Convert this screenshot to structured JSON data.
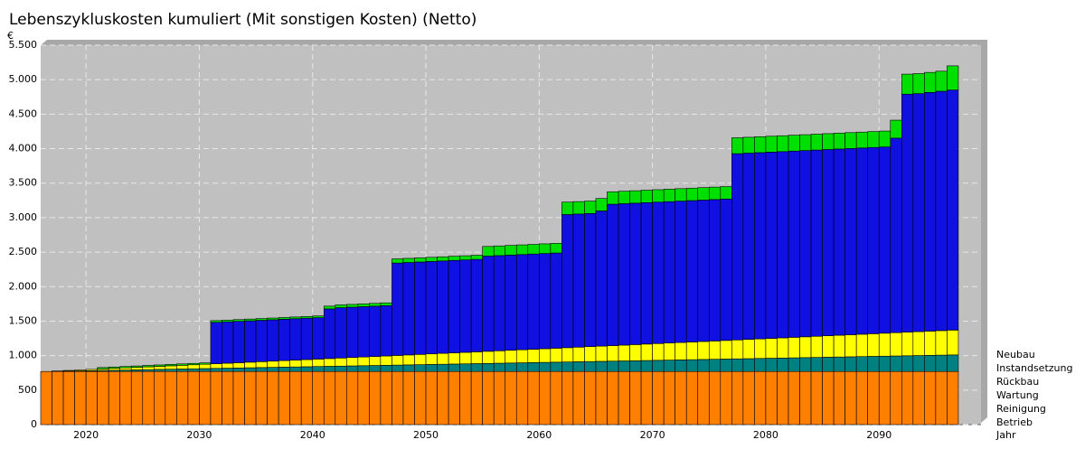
{
  "chart_data": {
    "type": "stacked_bar",
    "title": "Lebenszykluskosten kumuliert (Mit sonstigen Kosten) (Netto)",
    "y_label": "€",
    "x_label": "Jahr",
    "x": [
      2016,
      2017,
      2018,
      2019,
      2020,
      2021,
      2022,
      2023,
      2024,
      2025,
      2026,
      2027,
      2028,
      2029,
      2030,
      2031,
      2032,
      2033,
      2034,
      2035,
      2036,
      2037,
      2038,
      2039,
      2040,
      2041,
      2042,
      2043,
      2044,
      2045,
      2046,
      2047,
      2048,
      2049,
      2050,
      2051,
      2052,
      2053,
      2054,
      2055,
      2056,
      2057,
      2058,
      2059,
      2060,
      2061,
      2062,
      2063,
      2064,
      2065,
      2066,
      2067,
      2068,
      2069,
      2070,
      2071,
      2072,
      2073,
      2074,
      2075,
      2076,
      2077,
      2078,
      2079,
      2080,
      2081,
      2082,
      2083,
      2084,
      2085,
      2086,
      2087,
      2088,
      2089,
      2090,
      2091,
      2092,
      2093,
      2094,
      2095,
      2096
    ],
    "xlim": [
      2016,
      2099
    ],
    "xticks": [
      2020,
      2030,
      2040,
      2050,
      2060,
      2070,
      2080,
      2090
    ],
    "ylim": [
      0,
      5500
    ],
    "yticks": [
      0,
      500,
      {
        "value": 1000,
        "label": "1.000"
      },
      {
        "value": 1500,
        "label": "1.500"
      },
      {
        "value": 2000,
        "label": "2.000"
      },
      {
        "value": 2500,
        "label": "2.500"
      },
      {
        "value": 3000,
        "label": "3.000"
      },
      {
        "value": 3500,
        "label": "3.500"
      },
      {
        "value": 4000,
        "label": "4.000"
      },
      {
        "value": 4500,
        "label": "4.500"
      },
      {
        "value": 5000,
        "label": "5.000"
      },
      {
        "value": 5500,
        "label": "5.500"
      }
    ],
    "grid": true,
    "series": [
      {
        "name": "Neubau",
        "color": "#ff8000",
        "values": [
          770,
          770,
          770,
          770,
          770,
          770,
          770,
          770,
          770,
          770,
          770,
          770,
          770,
          770,
          770,
          770,
          770,
          770,
          770,
          770,
          770,
          770,
          770,
          770,
          770,
          770,
          770,
          770,
          770,
          770,
          770,
          770,
          770,
          770,
          770,
          770,
          770,
          770,
          770,
          770,
          770,
          770,
          770,
          770,
          770,
          770,
          770,
          770,
          770,
          770,
          770,
          770,
          770,
          770,
          770,
          770,
          770,
          770,
          770,
          770,
          770,
          770,
          770,
          770,
          770,
          770,
          770,
          770,
          770,
          770,
          770,
          770,
          770,
          770,
          770,
          770,
          770,
          770,
          770,
          770,
          770
        ]
      },
      {
        "name": "Instandsetzung",
        "color": "#1010e0",
        "values": [
          0,
          0,
          0,
          0,
          0,
          0,
          0,
          0,
          0,
          0,
          0,
          0,
          0,
          0,
          0,
          600,
          600,
          600,
          600,
          600,
          600,
          600,
          600,
          600,
          600,
          720,
          730,
          730,
          730,
          730,
          730,
          1340,
          1340,
          1340,
          1340,
          1340,
          1340,
          1340,
          1340,
          1380,
          1380,
          1380,
          1380,
          1380,
          1380,
          1380,
          1930,
          1930,
          1930,
          1960,
          2050,
          2050,
          2050,
          2050,
          2050,
          2050,
          2050,
          2050,
          2050,
          2050,
          2050,
          2700,
          2700,
          2700,
          2700,
          2700,
          2700,
          2700,
          2700,
          2700,
          2700,
          2700,
          2700,
          2700,
          2700,
          2820,
          3450,
          3450,
          3460,
          3470,
          3480
        ]
      },
      {
        "name": "Rückbau",
        "color": "#00e000",
        "values": [
          0,
          0,
          0,
          0,
          0,
          20,
          20,
          20,
          20,
          20,
          20,
          20,
          20,
          20,
          20,
          25,
          25,
          25,
          25,
          25,
          25,
          25,
          25,
          25,
          25,
          40,
          40,
          40,
          40,
          40,
          40,
          60,
          60,
          60,
          60,
          60,
          60,
          60,
          60,
          140,
          140,
          140,
          140,
          140,
          140,
          140,
          180,
          180,
          180,
          180,
          180,
          180,
          180,
          180,
          180,
          180,
          180,
          180,
          180,
          180,
          180,
          230,
          230,
          230,
          230,
          230,
          230,
          230,
          230,
          230,
          230,
          230,
          230,
          230,
          230,
          260,
          290,
          290,
          290,
          290,
          350
        ]
      },
      {
        "name": "Wartung",
        "color": "#ffff00",
        "values": [
          0,
          4.5,
          9,
          13.5,
          18,
          22.5,
          27,
          31.5,
          36,
          40.5,
          45,
          49.5,
          54,
          58.5,
          63,
          67.5,
          72,
          76.5,
          81,
          85.5,
          90,
          94.5,
          99,
          103.5,
          108,
          112.5,
          117,
          121.5,
          126,
          130.5,
          135,
          139.5,
          144,
          148.5,
          153,
          157.5,
          162,
          166.5,
          171,
          175.5,
          180,
          184.5,
          189,
          193.5,
          198,
          202.5,
          207,
          211.5,
          216,
          220.5,
          225,
          229.5,
          234,
          238.5,
          243,
          247.5,
          252,
          256.5,
          261,
          265.5,
          270,
          274.5,
          279,
          283.5,
          288,
          292.5,
          297,
          301.5,
          306,
          310.5,
          315,
          319.5,
          324,
          328.5,
          333,
          337.5,
          342,
          346.5,
          351,
          355.5,
          360
        ]
      },
      {
        "name": "Reinigung",
        "color": "#008080",
        "values": [
          0,
          3,
          6,
          9,
          12,
          15,
          18,
          21,
          24,
          27,
          30,
          33,
          36,
          39,
          42,
          45,
          48,
          51,
          54,
          57,
          60,
          63,
          66,
          69,
          72,
          75,
          78,
          81,
          84,
          87,
          90,
          93,
          96,
          99,
          102,
          105,
          108,
          111,
          114,
          117,
          120,
          123,
          126,
          129,
          132,
          135,
          138,
          141,
          144,
          147,
          150,
          153,
          156,
          159,
          162,
          165,
          168,
          171,
          174,
          177,
          180,
          183,
          186,
          189,
          192,
          195,
          198,
          201,
          204,
          207,
          210,
          213,
          216,
          219,
          222,
          225,
          228,
          231,
          234,
          237,
          240
        ]
      },
      {
        "name": "Betrieb",
        "color": "#8080ff",
        "values": [
          0,
          0,
          0,
          0,
          0,
          0,
          0,
          0,
          0,
          0,
          0,
          0,
          0,
          0,
          0,
          0,
          0,
          0,
          0,
          0,
          0,
          0,
          0,
          0,
          0,
          0,
          0,
          0,
          0,
          0,
          0,
          0,
          0,
          0,
          0,
          0,
          0,
          0,
          0,
          0,
          0,
          0,
          0,
          0,
          0,
          0,
          0,
          0,
          0,
          0,
          0,
          0,
          0,
          0,
          0,
          0,
          0,
          0,
          0,
          0,
          0,
          0,
          0,
          0,
          0,
          0,
          0,
          0,
          0,
          0,
          0,
          0,
          0,
          0,
          0,
          0,
          0,
          0,
          0,
          0,
          0
        ]
      }
    ]
  }
}
